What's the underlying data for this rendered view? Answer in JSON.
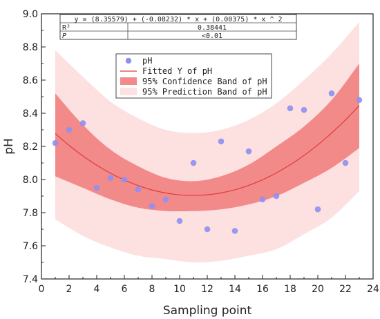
{
  "chart_data": {
    "type": "scatter",
    "xlabel": "Sampling point",
    "ylabel": "pH",
    "xlim": [
      0,
      24
    ],
    "ylim": [
      7.4,
      9.0
    ],
    "xticks": [
      "0",
      "2",
      "4",
      "6",
      "8",
      "10",
      "12",
      "14",
      "16",
      "18",
      "20",
      "22",
      "24"
    ],
    "yticks": [
      "7.4",
      "7.6",
      "7.8",
      "8.0",
      "8.2",
      "8.4",
      "8.6",
      "8.8",
      "9.0"
    ],
    "series": [
      {
        "name": "pH",
        "x": [
          1,
          2,
          3,
          4,
          5,
          6,
          7,
          8,
          9,
          10,
          11,
          12,
          13,
          14,
          15,
          16,
          17,
          18,
          19,
          20,
          21,
          22,
          23
        ],
        "y": [
          8.22,
          8.3,
          8.34,
          7.95,
          8.01,
          8.0,
          7.94,
          7.84,
          7.88,
          7.75,
          8.1,
          7.7,
          8.23,
          7.69,
          8.17,
          7.88,
          7.9,
          8.43,
          8.42,
          7.82,
          8.52,
          8.1,
          8.48
        ]
      }
    ],
    "fit": {
      "name": "Fitted Y of pH",
      "coefficients": [
        8.35579,
        -0.08232,
        0.00375
      ]
    },
    "confidence_band": {
      "name": "95% Confidence Band of pH",
      "x": [
        1,
        3,
        5,
        7,
        9,
        11,
        13,
        15,
        17,
        19,
        21,
        23
      ],
      "lower": [
        8.02,
        7.95,
        7.88,
        7.83,
        7.81,
        7.81,
        7.82,
        7.85,
        7.9,
        7.98,
        8.07,
        8.19
      ],
      "upper": [
        8.52,
        8.33,
        8.18,
        8.08,
        8.01,
        7.99,
        8.02,
        8.09,
        8.2,
        8.32,
        8.48,
        8.7
      ]
    },
    "prediction_band": {
      "name": "95% Prediction Band of pH",
      "x": [
        1,
        3,
        5,
        7,
        9,
        11,
        13,
        15,
        17,
        19,
        21,
        23
      ],
      "lower": [
        7.76,
        7.66,
        7.59,
        7.54,
        7.52,
        7.5,
        7.51,
        7.54,
        7.58,
        7.67,
        7.77,
        7.93
      ],
      "upper": [
        8.78,
        8.62,
        8.47,
        8.37,
        8.3,
        8.28,
        8.3,
        8.36,
        8.46,
        8.6,
        8.76,
        8.95
      ]
    },
    "legend_position": "top-center",
    "grid": false,
    "colors": {
      "points": "#8f8ff0",
      "fit_line": "#e03a3a",
      "confidence_band": "#f28a8a",
      "prediction_band": "#fde0e0"
    }
  },
  "stats_table": {
    "equation": "y = (8.35579) + (-0.08232) * x + (0.00375) * x ^ 2",
    "rows": [
      {
        "label": "R²",
        "value": "0.38441"
      },
      {
        "label": "P",
        "value": "<0.01"
      }
    ]
  }
}
